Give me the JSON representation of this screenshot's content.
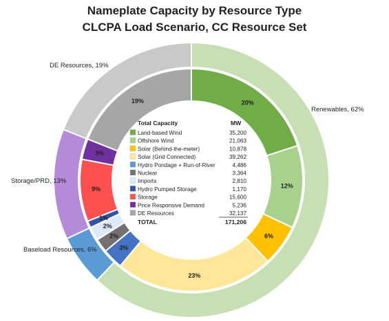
{
  "chart_data": {
    "type": "pie",
    "title": "Nameplate Capacity by Resource Type",
    "subtitle": "CLCPA Load Scenario, CC Resource Set",
    "outer_ring": [
      {
        "label": "Renewables, 62%",
        "value": 62,
        "color": "#c6e0b4"
      },
      {
        "label": "Baseload Resources, 6%",
        "value": 6,
        "color": "#5b9bd5"
      },
      {
        "label": "Storage/PRD, 13%",
        "value": 13,
        "color": "#b48ad9"
      },
      {
        "label": "DE Resources, 19%",
        "value": 19,
        "color": "#c9c9c9"
      }
    ],
    "inner_ring": [
      {
        "name": "Land-based Wind",
        "pct": 20,
        "pct_label": "20%",
        "color": "#70ad47"
      },
      {
        "name": "Offshore Wind",
        "pct": 12,
        "pct_label": "12%",
        "color": "#a9d18e"
      },
      {
        "name": "Solar (Behind-the-meter)",
        "pct": 6,
        "pct_label": "6%",
        "color": "#ffc000"
      },
      {
        "name": "Solar (Grid Connected)",
        "pct": 23,
        "pct_label": "23%",
        "color": "#ffe699"
      },
      {
        "name": "Hydro Pondage + Run-of-River",
        "pct": 3,
        "pct_label": "3%",
        "color": "#4472c4"
      },
      {
        "name": "Nuclear",
        "pct": 2,
        "pct_label": "2%",
        "color": "#767171"
      },
      {
        "name": "Imports",
        "pct": 2,
        "pct_label": "2%",
        "color": "#dde9f7"
      },
      {
        "name": "Hydro Pumped Storage",
        "pct": 1,
        "pct_label": "1%",
        "color": "#2f55a4"
      },
      {
        "name": "Storage",
        "pct": 9,
        "pct_label": "9%",
        "color": "#ff5050"
      },
      {
        "name": "Price Responsive Demand",
        "pct": 3,
        "pct_label": "3%",
        "color": "#7030a0"
      },
      {
        "name": "DE Resources",
        "pct": 19,
        "pct_label": "19%",
        "color": "#a6a6a6"
      }
    ],
    "legend": {
      "header_label": "Total Capacity",
      "header_unit": "MW",
      "rows": [
        {
          "name": "Land-based Wind",
          "mw": "35,200",
          "color": "#70ad47"
        },
        {
          "name": "Offshore Wind",
          "mw": "21,063",
          "color": "#a9d18e"
        },
        {
          "name": "Solar (Behind-the-meter)",
          "mw": "10,878",
          "color": "#ffc000"
        },
        {
          "name": "Solar (Grid Connected)",
          "mw": "39,262",
          "color": "#ffe699"
        },
        {
          "name": "Hydro Pondage + Run-of-River",
          "mw": "4,486",
          "color": "#5b9bd5"
        },
        {
          "name": "Nuclear",
          "mw": "3,364",
          "color": "#767171"
        },
        {
          "name": "Imports",
          "mw": "2,810",
          "color": "#dde9f7"
        },
        {
          "name": "Hydro Pumped Storage",
          "mw": "1,170",
          "color": "#2f55a4"
        },
        {
          "name": "Storage",
          "mw": "15,600",
          "color": "#ff5050"
        },
        {
          "name": "Price Responsive Demand",
          "mw": "5,236",
          "color": "#7030a0"
        },
        {
          "name": "DE Resources",
          "mw": "32,137",
          "color": "#a6a6a6"
        }
      ],
      "total_label": "TOTAL",
      "total_mw": "171,206"
    }
  }
}
